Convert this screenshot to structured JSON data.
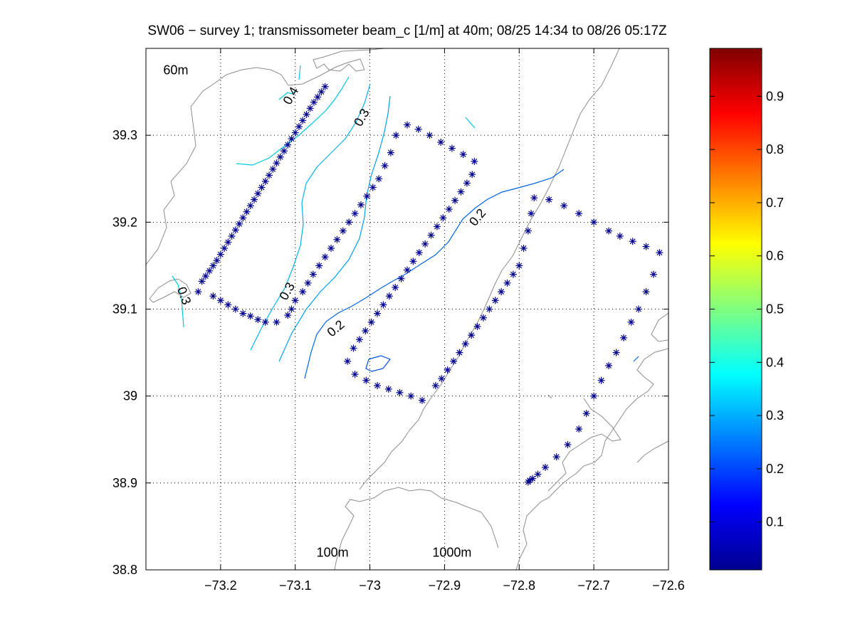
{
  "chart_data": {
    "type": "scatter",
    "title": "SW06 − survey 1; transmissometer beam_c [1/m] at 40m; 08/25 14:34 to 08/26 05:17Z",
    "xlabel": "",
    "ylabel": "",
    "xlim": [
      -73.3,
      -72.6
    ],
    "ylim": [
      38.8,
      39.4
    ],
    "xticks": [
      -73.2,
      -73.1,
      -73.0,
      -72.9,
      -72.8,
      -72.7,
      -72.6
    ],
    "xtick_labels": [
      "−73.2",
      "−73.1",
      "−73",
      "−72.9",
      "−72.8",
      "−72.7",
      "−72.6"
    ],
    "yticks": [
      38.8,
      38.9,
      39.0,
      39.1,
      39.2,
      39.3
    ],
    "ytick_labels": [
      "38.8",
      "38.9",
      "39",
      "39.1",
      "39.2",
      "39.3"
    ],
    "grid": true,
    "colorbar": {
      "colormap": "jet",
      "range": [
        0.01,
        0.99
      ],
      "ticks": [
        0.1,
        0.2,
        0.3,
        0.4,
        0.5,
        0.6,
        0.7,
        0.8,
        0.9
      ],
      "tick_labels": [
        "0.1",
        "0.2",
        "0.3",
        "0.4",
        "0.5",
        "0.6",
        "0.7",
        "0.8",
        "0.9"
      ]
    },
    "depth_labels": [
      {
        "text": "60m",
        "x": -73.26,
        "y": 39.37
      },
      {
        "text": "100m",
        "x": -73.05,
        "y": 38.815
      },
      {
        "text": "1000m",
        "x": -72.89,
        "y": 38.815
      }
    ],
    "contour_labels": [
      {
        "text": "0.4",
        "x": -73.105,
        "y": 39.345,
        "rotate": -60
      },
      {
        "text": "0.3",
        "x": -73.01,
        "y": 39.32,
        "rotate": -60
      },
      {
        "text": "0.3",
        "x": -73.25,
        "y": 39.115,
        "rotate": 70
      },
      {
        "text": "0.3",
        "x": -73.11,
        "y": 39.12,
        "rotate": -60
      },
      {
        "text": "0.2",
        "x": -72.855,
        "y": 39.205,
        "rotate": -50
      },
      {
        "text": "0.2",
        "x": -73.045,
        "y": 39.077,
        "rotate": -40
      }
    ],
    "series": [
      {
        "marker": "*",
        "color": "#00008f",
        "x": [
          -73.225,
          -73.22,
          -73.215,
          -73.21,
          -73.205,
          -73.2,
          -73.195,
          -73.19,
          -73.185,
          -73.18,
          -73.175,
          -73.17,
          -73.165,
          -73.16,
          -73.155,
          -73.15,
          -73.145,
          -73.14,
          -73.135,
          -73.13,
          -73.125,
          -73.12,
          -73.115,
          -73.11,
          -73.105,
          -73.1,
          -73.095,
          -73.09,
          -73.085,
          -73.08,
          -73.075,
          -73.07,
          -73.065,
          -73.06,
          -73.23,
          -73.21,
          -73.2,
          -73.19,
          -73.18,
          -73.17,
          -73.16,
          -73.15,
          -73.14,
          -73.125,
          -73.11,
          -73.105,
          -73.1,
          -73.09,
          -73.083,
          -73.076,
          -73.068,
          -73.06,
          -73.052,
          -73.044,
          -73.036,
          -73.028,
          -73.02,
          -73.012,
          -73.004,
          -72.996,
          -72.988,
          -72.98,
          -72.972,
          -72.965,
          -72.95,
          -72.935,
          -72.92,
          -72.905,
          -72.89,
          -72.875,
          -72.86,
          -72.863,
          -72.87,
          -72.878,
          -72.886,
          -72.894,
          -72.902,
          -72.91,
          -72.918,
          -72.926,
          -72.934,
          -72.942,
          -72.95,
          -72.958,
          -72.966,
          -72.974,
          -72.982,
          -72.99,
          -72.998,
          -73.006,
          -73.014,
          -73.022,
          -73.03,
          -73.02,
          -73.005,
          -72.99,
          -72.975,
          -72.96,
          -72.945,
          -72.93,
          -72.912,
          -72.904,
          -72.896,
          -72.888,
          -72.88,
          -72.872,
          -72.864,
          -72.856,
          -72.848,
          -72.84,
          -72.832,
          -72.824,
          -72.816,
          -72.808,
          -72.8,
          -72.794,
          -72.788,
          -72.784,
          -72.78,
          -72.76,
          -72.74,
          -72.72,
          -72.7,
          -72.68,
          -72.665,
          -72.648,
          -72.63,
          -72.612,
          -72.62,
          -72.63,
          -72.64,
          -72.65,
          -72.66,
          -72.67,
          -72.68,
          -72.69,
          -72.7,
          -72.71,
          -72.72,
          -72.735,
          -72.75,
          -72.765,
          -72.775,
          -72.782,
          -72.786,
          -72.788
        ],
        "y": [
          39.132,
          39.138,
          39.144,
          39.15,
          39.156,
          39.163,
          39.17,
          39.177,
          39.184,
          39.191,
          39.198,
          39.205,
          39.212,
          39.219,
          39.226,
          39.233,
          39.24,
          39.247,
          39.254,
          39.261,
          39.268,
          39.275,
          39.282,
          39.289,
          39.296,
          39.303,
          39.31,
          39.317,
          39.324,
          39.331,
          39.338,
          39.344,
          39.35,
          39.356,
          39.12,
          39.115,
          39.11,
          39.105,
          39.1,
          39.095,
          39.092,
          39.088,
          39.085,
          39.085,
          39.093,
          39.1,
          39.11,
          39.12,
          39.13,
          39.14,
          39.15,
          39.16,
          39.17,
          39.18,
          39.19,
          39.2,
          39.21,
          39.22,
          39.23,
          39.24,
          39.25,
          39.265,
          39.28,
          39.3,
          39.312,
          39.307,
          39.3,
          39.292,
          39.285,
          39.278,
          39.27,
          39.255,
          39.245,
          39.235,
          39.225,
          39.215,
          39.205,
          39.195,
          39.185,
          39.175,
          39.165,
          39.155,
          39.145,
          39.135,
          39.125,
          39.115,
          39.105,
          39.095,
          39.085,
          39.075,
          39.065,
          39.055,
          39.04,
          39.025,
          39.018,
          39.012,
          39.008,
          39.004,
          39.0,
          38.995,
          39.012,
          39.02,
          39.03,
          39.04,
          39.05,
          39.06,
          39.07,
          39.08,
          39.09,
          39.1,
          39.11,
          39.12,
          39.13,
          39.14,
          39.15,
          39.17,
          39.19,
          39.21,
          39.228,
          39.226,
          39.219,
          39.21,
          39.2,
          39.19,
          39.184,
          39.178,
          39.172,
          39.165,
          39.14,
          39.12,
          39.1,
          39.085,
          39.067,
          39.05,
          39.035,
          39.018,
          39.0,
          38.98,
          38.962,
          38.944,
          38.93,
          38.918,
          38.91,
          38.905,
          38.903,
          38.901
        ]
      }
    ]
  }
}
